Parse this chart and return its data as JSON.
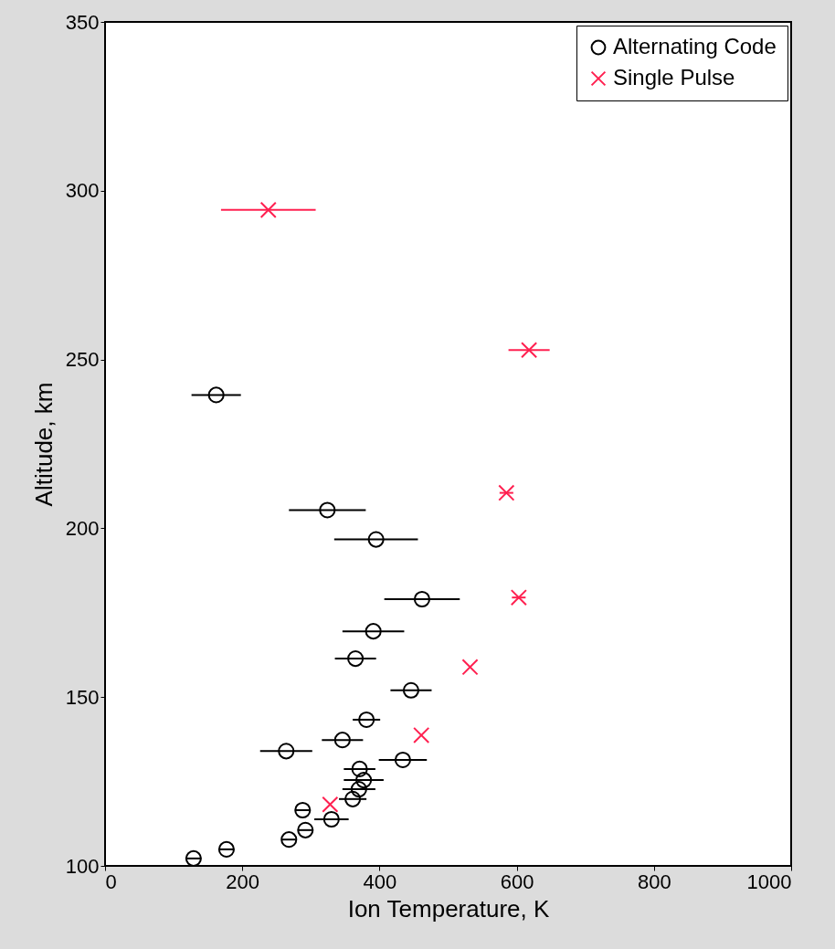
{
  "chart_data": {
    "type": "scatter",
    "xlabel": "Ion Temperature, K",
    "ylabel": "Altitude, km",
    "xlim": [
      0,
      1000
    ],
    "xticks": [
      0,
      200,
      400,
      600,
      800,
      1000
    ],
    "ylim": [
      100,
      350
    ],
    "yticks": [
      100,
      150,
      200,
      250,
      300,
      350
    ],
    "grid": false,
    "legend": "top right",
    "series": [
      {
        "name": "Alternating Code",
        "color": "#000000",
        "marker": "circle",
        "x": [
          129,
          177,
          268,
          292,
          288,
          330,
          361,
          370,
          377,
          371,
          434,
          264,
          346,
          381,
          446,
          365,
          391,
          462,
          395,
          324,
          162
        ],
        "values": [
          102.2,
          104.9,
          107.8,
          110.6,
          116.5,
          113.8,
          119.8,
          122.7,
          125.4,
          128.7,
          131.4,
          134,
          137.3,
          143.3,
          152,
          161.4,
          169.5,
          179,
          196.7,
          205.4,
          239.5
        ],
        "xerrors": [
          10,
          10,
          10,
          10,
          10,
          25,
          20,
          24,
          29,
          23,
          35,
          38,
          30,
          20,
          30,
          30,
          45,
          55,
          61,
          56,
          36
        ]
      },
      {
        "name": "Single Pulse",
        "color": "#ff2050",
        "marker": "cross",
        "x": [
          328,
          461,
          532,
          603,
          585,
          618,
          238
        ],
        "values": [
          118.2,
          138.7,
          158.9,
          179.5,
          210.5,
          252.8,
          294.3
        ],
        "xerrors": [
          null,
          null,
          null,
          10,
          10,
          30,
          69
        ]
      }
    ]
  }
}
